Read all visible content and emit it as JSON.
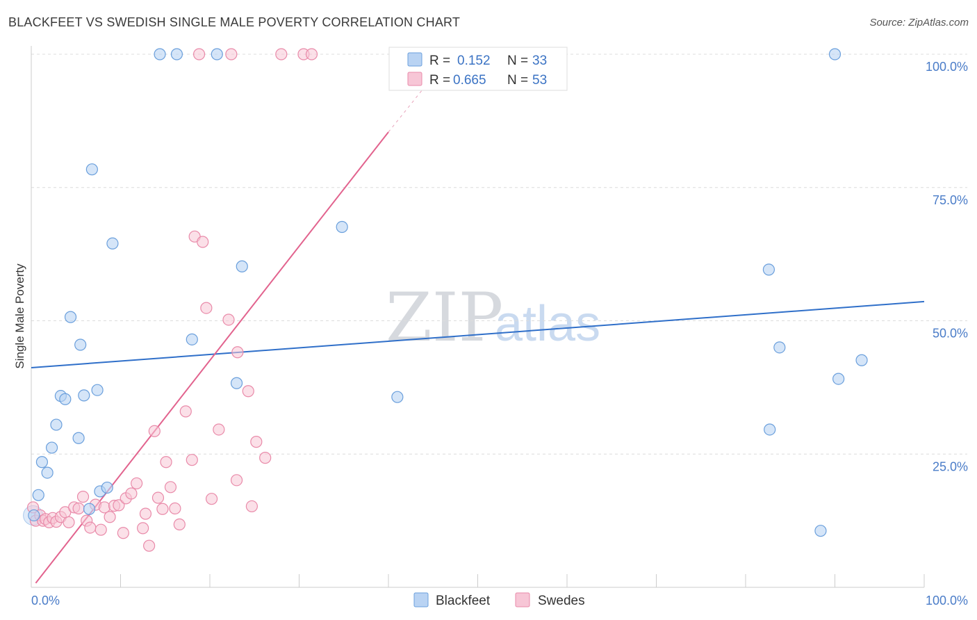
{
  "title": "BLACKFEET VS SWEDISH SINGLE MALE POVERTY CORRELATION CHART",
  "source": "Source: ZipAtlas.com",
  "watermark": {
    "zip": "ZIP",
    "atlas": "atlas"
  },
  "legend": {
    "rows": [
      {
        "r_label": "R =",
        "r_value": "0.152",
        "n_label": "N =",
        "n_value": "33"
      },
      {
        "r_label": "R =",
        "r_value": "0.665",
        "n_label": "N =",
        "n_value": "53"
      }
    ]
  },
  "colors": {
    "blackfeet_fill": "#b9d3f3",
    "blackfeet_stroke": "#6a9fdc",
    "blackfeet_line": "#2f6fc9",
    "swedes_fill": "#f7c6d6",
    "swedes_stroke": "#e98aa9",
    "swedes_line": "#e2638e",
    "grid": "#dcdcdc",
    "axis_text": "#4a7cc8"
  },
  "chart_data": {
    "type": "scatter",
    "title": "BLACKFEET VS SWEDISH SINGLE MALE POVERTY CORRELATION CHART",
    "xlabel": "",
    "ylabel": "Single Male Poverty",
    "xlim": [
      0,
      100
    ],
    "ylim": [
      0,
      100
    ],
    "x_tick_labels": [
      "0.0%",
      "100.0%"
    ],
    "y_ticks": [
      25,
      50,
      75,
      100
    ],
    "y_tick_labels": [
      "25.0%",
      "50.0%",
      "75.0%",
      "100.0%"
    ],
    "legend_position": "top-center",
    "series": [
      {
        "name": "Blackfeet",
        "r": 0.152,
        "n": 33,
        "trend": {
          "x": [
            0,
            100
          ],
          "y": [
            41.2,
            53.6
          ]
        },
        "points": [
          [
            0.3,
            13.5
          ],
          [
            0.8,
            17.3
          ],
          [
            1.2,
            23.5
          ],
          [
            1.8,
            21.5
          ],
          [
            2.3,
            26.2
          ],
          [
            2.8,
            30.5
          ],
          [
            3.3,
            35.9
          ],
          [
            3.8,
            35.3
          ],
          [
            4.4,
            50.7
          ],
          [
            5.3,
            28.0
          ],
          [
            5.5,
            45.5
          ],
          [
            5.9,
            36.0
          ],
          [
            6.5,
            14.7
          ],
          [
            6.8,
            78.4
          ],
          [
            7.4,
            37.0
          ],
          [
            7.7,
            18.0
          ],
          [
            8.5,
            18.7
          ],
          [
            9.1,
            64.5
          ],
          [
            14.4,
            100
          ],
          [
            16.3,
            100
          ],
          [
            18.0,
            46.5
          ],
          [
            20.8,
            100
          ],
          [
            23.0,
            38.3
          ],
          [
            23.6,
            60.2
          ],
          [
            34.8,
            67.6
          ],
          [
            41.0,
            35.7
          ],
          [
            82.7,
            29.6
          ],
          [
            82.6,
            59.6
          ],
          [
            83.8,
            45.0
          ],
          [
            88.4,
            10.6
          ],
          [
            90.0,
            100
          ],
          [
            90.4,
            39.1
          ],
          [
            93.0,
            42.6
          ]
        ]
      },
      {
        "name": "Swedes",
        "r": 0.665,
        "n": 53,
        "trend": {
          "x": [
            0.5,
            40.0
          ],
          "y": [
            0.8,
            85.4
          ]
        },
        "trend_dashed": {
          "x": [
            40.0,
            47.0
          ],
          "y": [
            85.4,
            100.0
          ]
        },
        "points": [
          [
            0.2,
            15.0
          ],
          [
            0.5,
            12.5
          ],
          [
            1.0,
            13.5
          ],
          [
            1.3,
            12.5
          ],
          [
            1.6,
            12.8
          ],
          [
            2.0,
            12.2
          ],
          [
            2.4,
            13.0
          ],
          [
            2.8,
            12.3
          ],
          [
            3.3,
            13.2
          ],
          [
            3.8,
            14.1
          ],
          [
            4.2,
            12.2
          ],
          [
            4.8,
            15.0
          ],
          [
            5.3,
            14.8
          ],
          [
            5.8,
            17.0
          ],
          [
            6.2,
            12.5
          ],
          [
            6.6,
            11.2
          ],
          [
            7.2,
            15.5
          ],
          [
            7.8,
            10.8
          ],
          [
            8.2,
            15.0
          ],
          [
            8.8,
            13.2
          ],
          [
            9.3,
            15.3
          ],
          [
            9.8,
            15.4
          ],
          [
            10.3,
            10.2
          ],
          [
            10.6,
            16.7
          ],
          [
            11.2,
            17.6
          ],
          [
            11.8,
            19.5
          ],
          [
            12.5,
            11.1
          ],
          [
            12.8,
            13.8
          ],
          [
            13.2,
            7.8
          ],
          [
            13.8,
            29.3
          ],
          [
            14.2,
            16.8
          ],
          [
            14.7,
            14.7
          ],
          [
            15.1,
            23.5
          ],
          [
            15.6,
            18.8
          ],
          [
            16.1,
            14.8
          ],
          [
            16.6,
            11.8
          ],
          [
            17.3,
            33.0
          ],
          [
            18.0,
            23.9
          ],
          [
            18.3,
            65.8
          ],
          [
            19.2,
            64.8
          ],
          [
            19.6,
            52.4
          ],
          [
            20.2,
            16.6
          ],
          [
            21.0,
            29.6
          ],
          [
            22.1,
            50.2
          ],
          [
            23.0,
            20.1
          ],
          [
            23.1,
            44.1
          ],
          [
            24.3,
            36.8
          ],
          [
            24.7,
            15.2
          ],
          [
            25.2,
            27.3
          ],
          [
            26.2,
            24.3
          ],
          [
            18.8,
            100
          ],
          [
            22.4,
            100
          ],
          [
            28.0,
            100
          ]
        ],
        "extra_top_points": [
          [
            30.5,
            100
          ],
          [
            31.4,
            100
          ]
        ]
      }
    ]
  }
}
